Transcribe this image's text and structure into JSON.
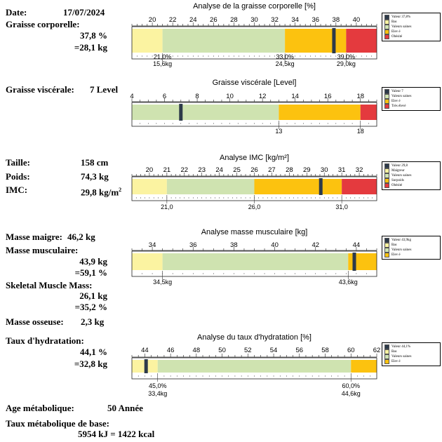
{
  "header": {
    "date_label": "Date:",
    "date_value": "17/07/2024"
  },
  "left": {
    "fat_label": "Graisse corporelle:",
    "fat_pct": "37,8 %",
    "fat_kg": "=28,1 kg",
    "visceral_label": "Graisse viscérale:",
    "visceral_value": "7 Level",
    "height_label": "Taille:",
    "height_value": "158 cm",
    "weight_label": "Poids:",
    "weight_value": "74,3 kg",
    "bmi_label": "IMC:",
    "bmi_value": "29,8 kg/m",
    "bmi_sup": "2",
    "lean_label": "Masse maigre:",
    "lean_value": "46,2 kg",
    "muscle_label": "Masse musculaire:",
    "muscle_kg": "43,9 kg",
    "muscle_pct": "=59,1 %",
    "skeletal_label": "Skeletal Muscle Mass:",
    "skeletal_kg": "26,1 kg",
    "skeletal_pct": "=35,2 %",
    "bone_label": "Masse osseuse:",
    "bone_value": "2,3 kg",
    "hydration_label": "Taux d'hydratation:",
    "hydration_pct": "44,1 %",
    "hydration_kg": "=32,8 kg",
    "meta_age_label": "Age métabolique:",
    "meta_age_value": "50 Année",
    "bmr_label": "Taux métabolique de base:",
    "bmr_value": "5954 kJ = 1422 kcal"
  },
  "colors": {
    "low": "#fbf3a1",
    "normal": "#cfe3b0",
    "high": "#fcc20f",
    "very_high": "#e43a3e",
    "marker": "#2d3a4a"
  },
  "chart_data": [
    {
      "id": "fat",
      "type": "bar",
      "title": "Analyse de la graisse corporelle [%]",
      "xlim": [
        18,
        42
      ],
      "ticks": [
        20,
        22,
        24,
        26,
        28,
        30,
        32,
        34,
        36,
        38,
        40
      ],
      "segments": [
        {
          "from": 18,
          "to": 21,
          "zone": "low"
        },
        {
          "from": 21,
          "to": 33,
          "zone": "normal"
        },
        {
          "from": 33,
          "to": 39,
          "zone": "high"
        },
        {
          "from": 39,
          "to": 42,
          "zone": "very_high"
        }
      ],
      "value": 37.8,
      "below": [
        {
          "at": 21,
          "lines": [
            "21,0%",
            "15,6kg"
          ]
        },
        {
          "at": 33,
          "lines": [
            "33,0%",
            "24,5kg"
          ]
        },
        {
          "at": 39,
          "lines": [
            "39,0%",
            "29,0kg"
          ]
        }
      ],
      "legend": [
        {
          "label": "Valeur 37,8%",
          "zone": "marker"
        },
        {
          "label": "Bas",
          "zone": "low"
        },
        {
          "label": "Valeurs saines",
          "zone": "normal"
        },
        {
          "label": "Elev é",
          "zone": "high"
        },
        {
          "label": "Obésité",
          "zone": "very_high"
        }
      ]
    },
    {
      "id": "visceral",
      "type": "bar",
      "title": "Graisse viscérale [Level]",
      "xlim": [
        4,
        19
      ],
      "ticks": [
        4,
        6,
        8,
        10,
        12,
        14,
        16,
        18
      ],
      "segments": [
        {
          "from": 4,
          "to": 13,
          "zone": "normal"
        },
        {
          "from": 13,
          "to": 18,
          "zone": "high"
        },
        {
          "from": 18,
          "to": 19,
          "zone": "very_high"
        }
      ],
      "value": 7,
      "below": [
        {
          "at": 13,
          "lines": [
            "13"
          ]
        },
        {
          "at": 18,
          "lines": [
            "18"
          ]
        }
      ],
      "legend": [
        {
          "label": "Valeur 7",
          "zone": "marker"
        },
        {
          "label": "Valeurs saines",
          "zone": "normal"
        },
        {
          "label": "Elev é",
          "zone": "high"
        },
        {
          "label": "Très élevé",
          "zone": "very_high"
        }
      ]
    },
    {
      "id": "bmi",
      "type": "bar",
      "title": "Analyse IMC [kg/m²]",
      "xlim": [
        19,
        33
      ],
      "ticks": [
        20,
        21,
        22,
        23,
        24,
        25,
        26,
        27,
        28,
        29,
        30,
        31,
        32
      ],
      "segments": [
        {
          "from": 19,
          "to": 21,
          "zone": "low"
        },
        {
          "from": 21,
          "to": 26,
          "zone": "normal"
        },
        {
          "from": 26,
          "to": 31,
          "zone": "high"
        },
        {
          "from": 31,
          "to": 33,
          "zone": "very_high"
        }
      ],
      "value": 29.8,
      "below": [
        {
          "at": 21,
          "lines": [
            "21,0"
          ]
        },
        {
          "at": 26,
          "lines": [
            "26,0"
          ]
        },
        {
          "at": 31,
          "lines": [
            "31,0"
          ]
        }
      ],
      "legend": [
        {
          "label": "Valeur 29,8",
          "zone": "marker"
        },
        {
          "label": "Maigreur",
          "zone": "low"
        },
        {
          "label": "Valeurs saines",
          "zone": "normal"
        },
        {
          "label": "Surpoids",
          "zone": "high"
        },
        {
          "label": "Obésité",
          "zone": "very_high"
        }
      ]
    },
    {
      "id": "muscle",
      "type": "bar",
      "title": "Analyse masse musculaire [kg]",
      "xlim": [
        33,
        45
      ],
      "ticks": [
        34,
        36,
        38,
        40,
        42,
        44
      ],
      "segments": [
        {
          "from": 33,
          "to": 34.5,
          "zone": "low"
        },
        {
          "from": 34.5,
          "to": 43.6,
          "zone": "normal"
        },
        {
          "from": 43.6,
          "to": 45,
          "zone": "high"
        }
      ],
      "value": 43.9,
      "below": [
        {
          "at": 34.5,
          "lines": [
            "34,5kg"
          ]
        },
        {
          "at": 43.6,
          "lines": [
            "43,6kg"
          ]
        }
      ],
      "legend": [
        {
          "label": "Valeur 43,9kg",
          "zone": "marker"
        },
        {
          "label": "Bas",
          "zone": "low"
        },
        {
          "label": "Valeurs saines",
          "zone": "normal"
        },
        {
          "label": "Elev é",
          "zone": "high"
        }
      ]
    },
    {
      "id": "hydration",
      "type": "bar",
      "title": "Analyse du taux d'hydratation [%]",
      "xlim": [
        43,
        62
      ],
      "ticks": [
        44,
        46,
        48,
        50,
        52,
        54,
        56,
        58,
        60,
        62
      ],
      "segments": [
        {
          "from": 43,
          "to": 45,
          "zone": "low"
        },
        {
          "from": 45,
          "to": 60,
          "zone": "normal"
        },
        {
          "from": 60,
          "to": 62,
          "zone": "high"
        }
      ],
      "value": 44.1,
      "below": [
        {
          "at": 45,
          "lines": [
            "45,0%",
            "33,4kg"
          ]
        },
        {
          "at": 60,
          "lines": [
            "60,0%",
            "44,6kg"
          ]
        }
      ],
      "legend": [
        {
          "label": "Valeur 44,1%",
          "zone": "marker"
        },
        {
          "label": "Bas",
          "zone": "low"
        },
        {
          "label": "Valeurs saines",
          "zone": "normal"
        },
        {
          "label": "Elev é",
          "zone": "high"
        }
      ]
    }
  ]
}
